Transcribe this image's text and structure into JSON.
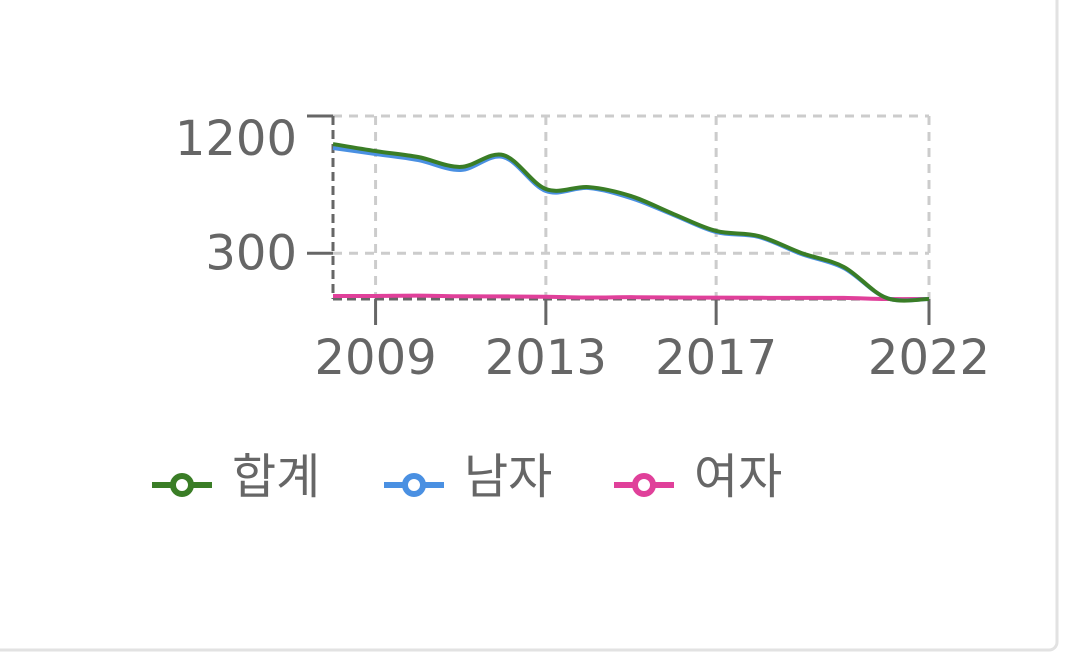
{
  "chart_data": {
    "type": "line",
    "x": [
      2008,
      2009,
      2010,
      2011,
      2012,
      2013,
      2014,
      2015,
      2016,
      2017,
      2018,
      2019,
      2020,
      2021,
      2022
    ],
    "series": [
      {
        "name": "합계",
        "color": "#3a7d26",
        "values": [
          1016,
          970,
          931,
          866,
          944,
          721,
          734,
          675,
          557,
          446,
          413,
          302,
          210,
          7,
          0
        ]
      },
      {
        "name": "남자",
        "color": "#4a90e2",
        "values": [
          990,
          951,
          911,
          846,
          931,
          708,
          728,
          662,
          551,
          439,
          407,
          295,
          203,
          7,
          0
        ]
      },
      {
        "name": "여자",
        "color": "#e0409a",
        "values": [
          20,
          20,
          22,
          18,
          17,
          15,
          10,
          12,
          10,
          9,
          8,
          7,
          7,
          0,
          0
        ]
      }
    ],
    "xlim": [
      2008,
      2022
    ],
    "xticks": [
      2009,
      2013,
      2017,
      2022
    ],
    "ylim": [
      0,
      1200
    ],
    "yticks": [
      300,
      1200
    ],
    "grid": true
  }
}
